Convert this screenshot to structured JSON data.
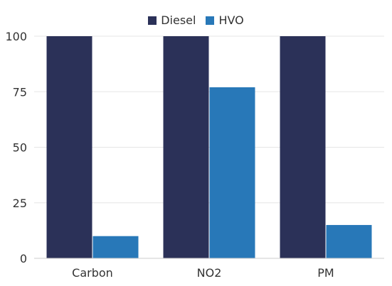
{
  "chart_data": {
    "type": "bar",
    "categories": [
      "Carbon",
      "NO2",
      "PM"
    ],
    "series": [
      {
        "name": "Diesel",
        "values": [
          100,
          100,
          100
        ],
        "color": "#2b3158"
      },
      {
        "name": "HVO",
        "values": [
          10,
          77,
          15
        ],
        "color": "#2878b8"
      }
    ],
    "ylim": [
      0,
      100
    ],
    "yticks": [
      "0",
      "25",
      "50",
      "75",
      "100"
    ],
    "legend_position": "top-center",
    "grid": true
  }
}
